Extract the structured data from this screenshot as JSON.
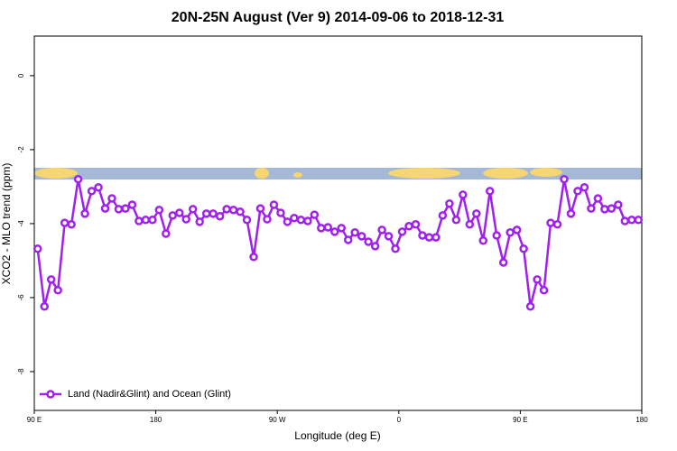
{
  "chart_data": {
    "type": "line",
    "title": "20N-25N August (Ver 9)   2014-09-06 to 2018-12-31",
    "xlabel": "Longitude (deg E)",
    "ylabel": "XCO2 - MLO trend (ppm)",
    "x": [
      92.5,
      97.5,
      102.5,
      107.5,
      112.5,
      117.5,
      122.5,
      127.5,
      132.5,
      137.5,
      142.5,
      147.5,
      152.5,
      157.5,
      162.5,
      167.5,
      172.5,
      177.5,
      182.5,
      187.5,
      192.5,
      197.5,
      202.5,
      207.5,
      212.5,
      217.5,
      222.5,
      227.5,
      232.5,
      237.5,
      242.5,
      247.5,
      252.5,
      257.5,
      262.5,
      267.5,
      272.5,
      277.5,
      282.5,
      287.5,
      292.5,
      297.5,
      302.5,
      307.5,
      312.5,
      317.5,
      322.5,
      327.5,
      332.5,
      337.5,
      342.5,
      347.5,
      352.5,
      357.5,
      362.5,
      367.5,
      372.5,
      377.5,
      382.5,
      387.5,
      392.5,
      397.5,
      402.5,
      407.5,
      412.5,
      417.5,
      422.5,
      427.5,
      432.5,
      437.5,
      442.5,
      447.5,
      452.5,
      457.5,
      462.5,
      467.5,
      472.5,
      477.5,
      482.5,
      487.5,
      492.5,
      497.5,
      502.5,
      507.5,
      512.5,
      517.5,
      522.5,
      527.5,
      532.5,
      537.5
    ],
    "series": [
      {
        "name": "Land (Nadir&Glint) and Ocean (Glint)",
        "color": "#a020f0",
        "values": [
          -4.68,
          -6.24,
          -5.51,
          -5.8,
          -3.98,
          -4.02,
          -2.8,
          -3.73,
          -3.12,
          -3.02,
          -3.59,
          -3.32,
          -3.61,
          -3.59,
          -3.49,
          -3.93,
          -3.9,
          -3.9,
          -3.63,
          -4.27,
          -3.78,
          -3.71,
          -3.88,
          -3.61,
          -3.95,
          -3.73,
          -3.73,
          -3.8,
          -3.61,
          -3.63,
          -3.68,
          -3.9,
          -4.9,
          -3.59,
          -3.88,
          -3.49,
          -3.71,
          -3.95,
          -3.85,
          -3.9,
          -3.93,
          -3.76,
          -4.12,
          -4.1,
          -4.22,
          -4.12,
          -4.44,
          -4.24,
          -4.34,
          -4.49,
          -4.61,
          -4.17,
          -4.34,
          -4.68,
          -4.22,
          -4.07,
          -4.02,
          -4.32,
          -4.37,
          -4.37,
          -3.78,
          -3.46,
          -3.9,
          -3.22,
          -4.02,
          -3.73,
          -4.46,
          -3.12,
          -4.32,
          -5.05,
          -4.24,
          -4.17,
          -4.68,
          -6.24,
          -5.51,
          -5.8,
          -3.98,
          -4.02,
          -2.8,
          -3.73,
          -3.12,
          -3.02,
          -3.59,
          -3.32,
          -3.61,
          -3.59,
          -3.49,
          -3.93,
          -3.9,
          -3.9
        ]
      }
    ],
    "xlim": [
      90,
      540
    ],
    "xticks": [
      {
        "value": 90,
        "label": "90 E"
      },
      {
        "value": 180,
        "label": "180"
      },
      {
        "value": 270,
        "label": "90 W"
      },
      {
        "value": 360,
        "label": "0"
      },
      {
        "value": 450,
        "label": "90 E"
      },
      {
        "value": 540,
        "label": "180"
      }
    ],
    "ylim": [
      -9.05,
      1.07
    ],
    "yticks": [
      0,
      -2,
      -4,
      -6,
      -8
    ],
    "legend": "bottom-left"
  }
}
